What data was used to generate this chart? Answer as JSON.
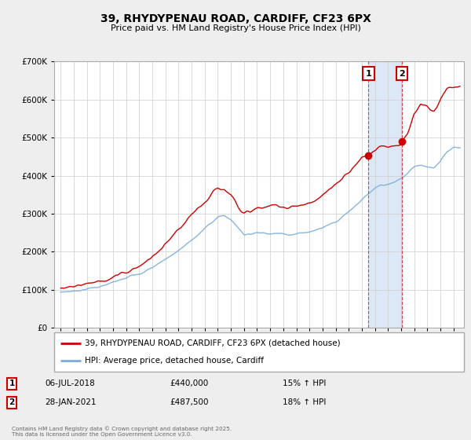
{
  "title_line1": "39, RHYDYPENAU ROAD, CARDIFF, CF23 6PX",
  "title_line2": "Price paid vs. HM Land Registry's House Price Index (HPI)",
  "background_color": "#eeeeee",
  "plot_bg_color": "#ffffff",
  "red_line_label": "39, RHYDYPENAU ROAD, CARDIFF, CF23 6PX (detached house)",
  "blue_line_label": "HPI: Average price, detached house, Cardiff",
  "marker1_date_x": 2018.51,
  "marker1_label": "1",
  "marker1_date_str": "06-JUL-2018",
  "marker1_price": "£440,000",
  "marker1_pct": "15% ↑ HPI",
  "marker2_date_x": 2021.08,
  "marker2_label": "2",
  "marker2_date_str": "28-JAN-2021",
  "marker2_price": "£487,500",
  "marker2_pct": "18% ↑ HPI",
  "ylim_min": 0,
  "ylim_max": 700000,
  "xlim_min": 1994.5,
  "xlim_max": 2025.8,
  "copyright_text": "Contains HM Land Registry data © Crown copyright and database right 2025.\nThis data is licensed under the Open Government Licence v3.0.",
  "red_color": "#cc0000",
  "blue_color": "#7aacda",
  "shade_color": "#dce8f5"
}
